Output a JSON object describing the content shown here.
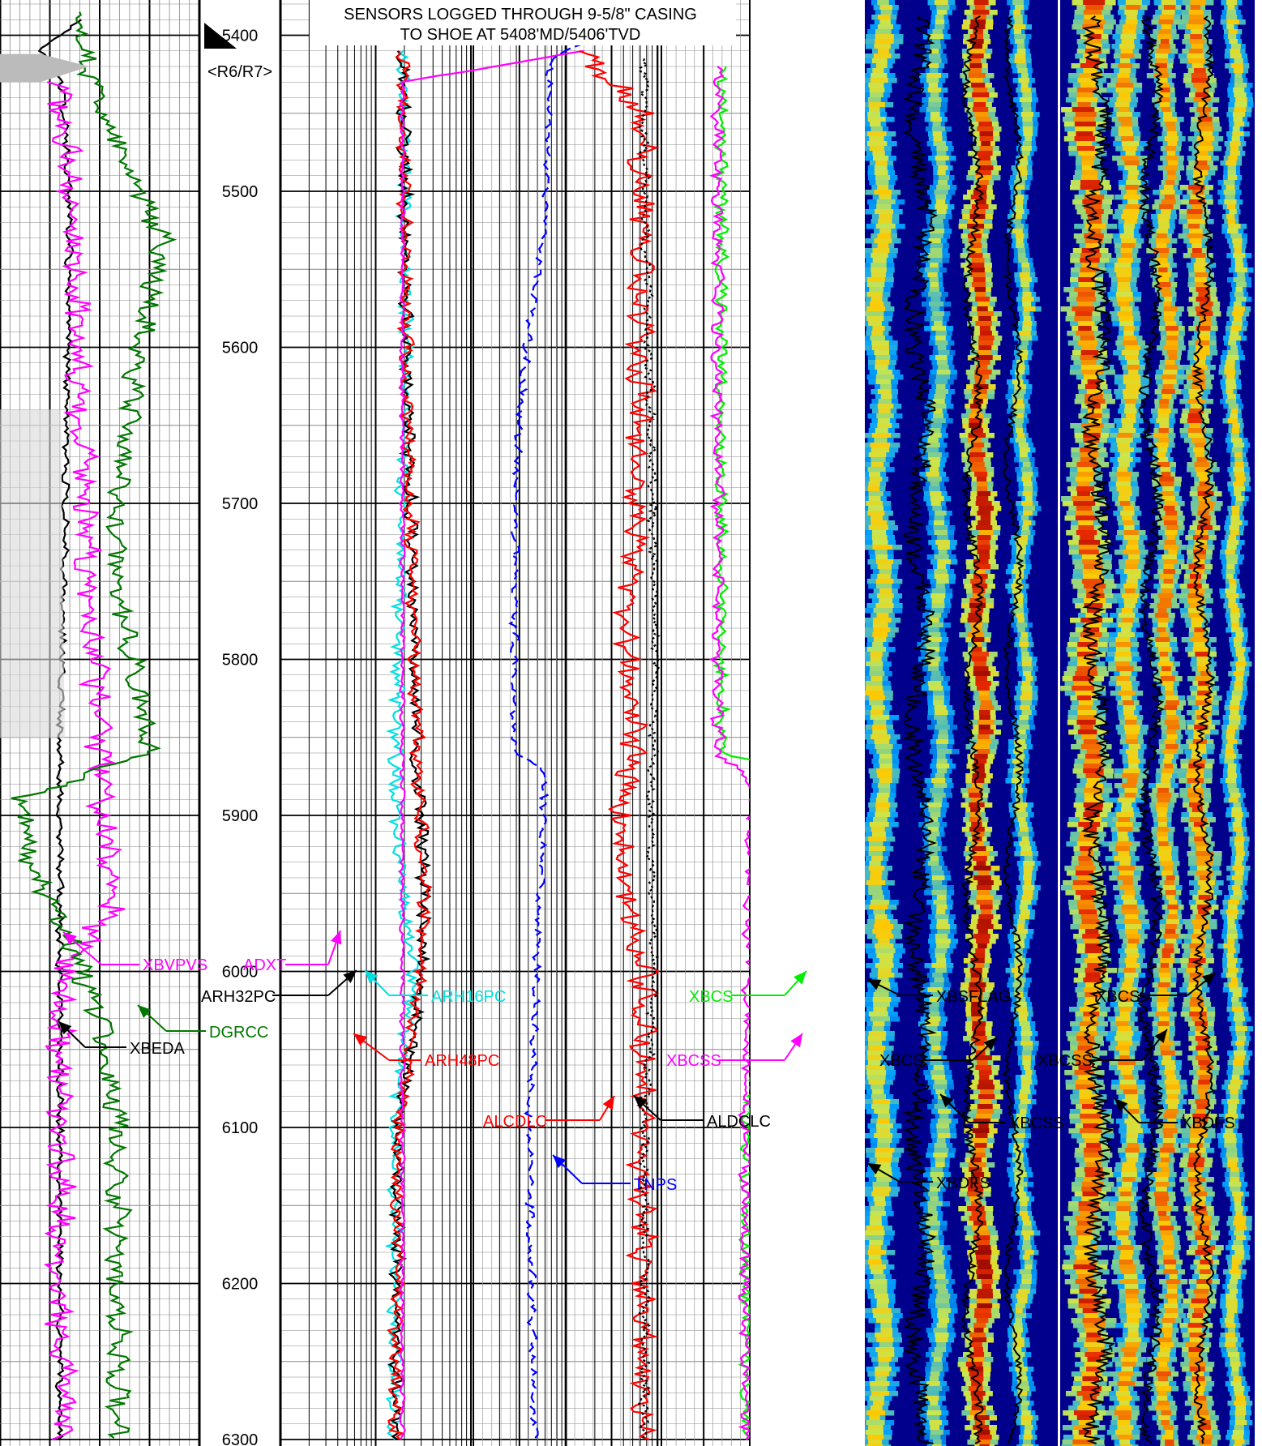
{
  "header": {
    "line1": "SENSORS LOGGED THROUGH 9-5/8\" CASING",
    "line2": "TO SHOE AT 5408'MD/5406'TVD"
  },
  "depth_marker": "<R6/R7>",
  "chart_data": {
    "type": "line",
    "title": "",
    "depth_axis": {
      "label": "",
      "top": 5380,
      "bottom": 6305,
      "unit": "ft MD",
      "major_ticks": [
        5400,
        5500,
        5600,
        5700,
        5800,
        5900,
        6000,
        6100,
        6200,
        6300
      ]
    },
    "tracks": [
      {
        "name": "track1",
        "scale": "linear",
        "curves": [
          {
            "name": "XBEDA",
            "color": "#000000",
            "depth": [
              5390,
              5410,
              5420,
              5500,
              5700,
              5850,
              6000,
              6100,
              6200,
              6300
            ],
            "value": [
              0.4,
              0.2,
              0.3,
              0.35,
              0.33,
              0.3,
              0.3,
              0.3,
              0.3,
              0.3
            ]
          },
          {
            "name": "XBVPVS",
            "color": "#ff00ff",
            "depth": [
              5430,
              5550,
              5700,
              5860,
              5960,
              6000,
              6100,
              6200,
              6300
            ],
            "value": [
              0.3,
              0.38,
              0.42,
              0.5,
              0.55,
              0.3,
              0.3,
              0.3,
              0.32
            ]
          },
          {
            "name": "DGRCC",
            "color": "#007700",
            "depth": [
              5385,
              5420,
              5480,
              5530,
              5600,
              5700,
              5760,
              5860,
              5890,
              5930,
              5980,
              6030,
              6100,
              6200,
              6300
            ],
            "value": [
              0.4,
              0.42,
              0.62,
              0.82,
              0.7,
              0.58,
              0.6,
              0.75,
              0.1,
              0.15,
              0.35,
              0.5,
              0.6,
              0.58,
              0.6
            ]
          }
        ]
      },
      {
        "name": "track3",
        "scale": "log",
        "curves": [
          {
            "name": "ARH16PC",
            "color": "#00e0e0",
            "depth": [
              5410,
              5600,
              5880,
              5950,
              6000,
              6100,
              6300
            ],
            "value": [
              0.32,
              0.33,
              0.3,
              0.32,
              0.35,
              0.3,
              0.3
            ]
          },
          {
            "name": "ARH32PC",
            "color": "#000000",
            "depth": [
              5410,
              5600,
              5870,
              5950,
              6000,
              6100,
              6300
            ],
            "value": [
              0.32,
              0.33,
              0.36,
              0.38,
              0.37,
              0.31,
              0.3
            ]
          },
          {
            "name": "ARH48PC",
            "color": "#ff0000",
            "depth": [
              5410,
              5600,
              5870,
              5950,
              6000,
              6100,
              6300
            ],
            "value": [
              0.32,
              0.33,
              0.36,
              0.38,
              0.37,
              0.31,
              0.3
            ]
          },
          {
            "name": "ADXT",
            "color": "#ff00ff",
            "depth": [
              5410,
              5430,
              5700,
              6000,
              6300
            ],
            "value": [
              0.8,
              0.32,
              0.32,
              0.32,
              0.32
            ]
          }
        ]
      },
      {
        "name": "track4",
        "scale": "linear",
        "curves": [
          {
            "name": "TNPS",
            "color": "#0000ff",
            "depth": [
              5405,
              5415,
              5520,
              5575,
              5640,
              5700,
              5860,
              5870,
              6000,
              6100,
              6300
            ],
            "value": [
              0.4,
              0.28,
              0.26,
              0.21,
              0.17,
              0.15,
              0.15,
              0.26,
              0.23,
              0.2,
              0.22
            ]
          },
          {
            "name": "ALCDLC",
            "color": "#ff0000",
            "depth": [
              5410,
              5450,
              5700,
              5780,
              5860,
              5900,
              5950,
              6000,
              6100,
              6300
            ],
            "value": [
              0.4,
              0.61,
              0.6,
              0.55,
              0.58,
              0.52,
              0.55,
              0.62,
              0.61,
              0.62
            ]
          },
          {
            "name": "ALDCLC",
            "color": "#000000",
            "depth": [
              5415,
              5500,
              5700,
              5800,
              5900,
              6000,
              6100,
              6300
            ],
            "value": [
              0.62,
              0.62,
              0.65,
              0.66,
              0.64,
              0.65,
              0.62,
              0.62
            ]
          }
        ]
      },
      {
        "name": "track5",
        "scale": "linear",
        "curves": [
          {
            "name": "XBCS",
            "color": "#00ee00",
            "depth": [
              5420,
              5700,
              5860,
              5870,
              6000,
              6100,
              6300
            ],
            "value": [
              0.3,
              0.3,
              0.3,
              0.6,
              0.5,
              0.42,
              0.42
            ]
          },
          {
            "name": "XBCSS",
            "color": "#ff00ff",
            "depth": [
              5420,
              5700,
              5860,
              5880,
              6000,
              6100,
              6300
            ],
            "value": [
              0.28,
              0.28,
              0.28,
              0.45,
              0.43,
              0.41,
              0.42
            ]
          }
        ]
      },
      {
        "name": "image1",
        "type": "heatmap",
        "curves": [
          "XBSFLAG",
          "XBCS",
          "XBCSS",
          "XBDFS"
        ]
      },
      {
        "name": "image2",
        "type": "heatmap",
        "curves": [
          "XBCS",
          "XBCSS",
          "XBDFS"
        ]
      }
    ],
    "annotations": [
      {
        "text": "XBVPVS",
        "color": "#ff00ff"
      },
      {
        "text": "ADXT",
        "color": "#ff00ff"
      },
      {
        "text": "DGRCC",
        "color": "#007700"
      },
      {
        "text": "XBEDA",
        "color": "#000000"
      },
      {
        "text": "ARH32PC",
        "color": "#000000"
      },
      {
        "text": "ARH16PC",
        "color": "#00e0e0"
      },
      {
        "text": "ARH48PC",
        "color": "#ff0000"
      },
      {
        "text": "ALCDLC",
        "color": "#ff0000"
      },
      {
        "text": "ALDCLC",
        "color": "#000000"
      },
      {
        "text": "TNPS",
        "color": "#0000ff"
      },
      {
        "text": "XBCS",
        "color": "#00ee00"
      },
      {
        "text": "XBCSS",
        "color": "#ff00ff"
      },
      {
        "text": "XBSFLAG",
        "color": "#000000"
      },
      {
        "text": "XBCS",
        "color": "#000000"
      },
      {
        "text": "XBCSS",
        "color": "#000000"
      },
      {
        "text": "XBDFS",
        "color": "#000000"
      },
      {
        "text": "XBCS",
        "color": "#000000"
      },
      {
        "text": "XBCSS",
        "color": "#000000"
      },
      {
        "text": "XBDFS",
        "color": "#000000"
      }
    ]
  }
}
